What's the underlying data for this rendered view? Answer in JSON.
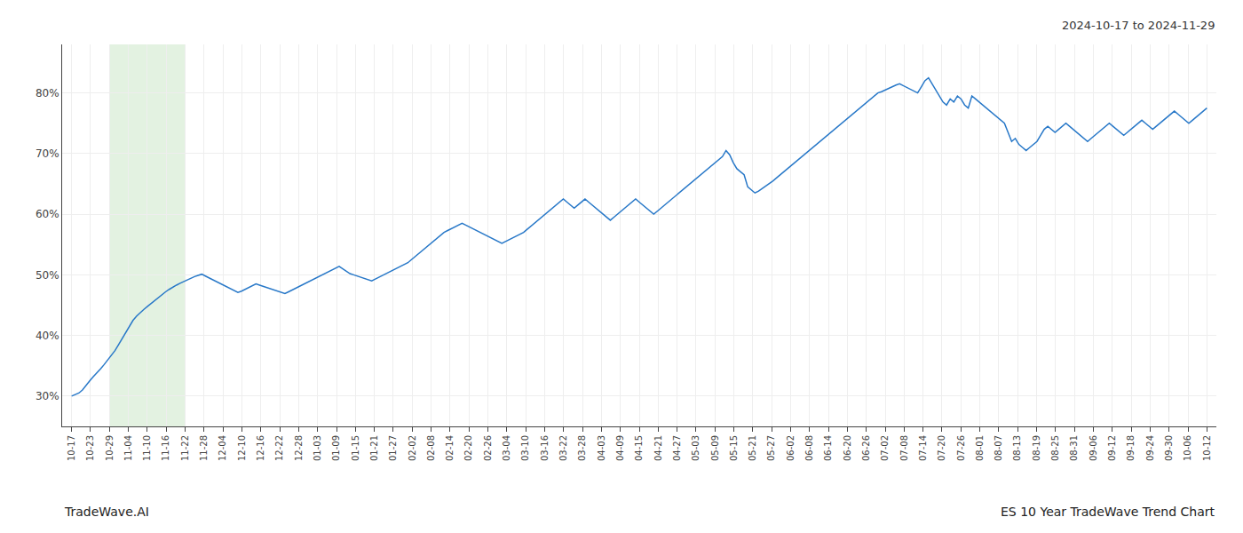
{
  "chart_data": {
    "type": "line",
    "annotations": [
      "2024-10-17 to 2024-11-29",
      "TradeWave.AI",
      "ES 10 Year TradeWave Trend Chart"
    ],
    "color": "#2878c8",
    "grid": true,
    "shaded": {
      "from": "10-29",
      "to": "11-22",
      "color": "#c8e6c4"
    },
    "xlim": [
      -0.5,
      60.5
    ],
    "xticks": [
      {
        "value": 0,
        "label": "10-17"
      },
      {
        "value": 1,
        "label": "10-23"
      },
      {
        "value": 2,
        "label": "10-29"
      },
      {
        "value": 3,
        "label": "11-04"
      },
      {
        "value": 4,
        "label": "11-10"
      },
      {
        "value": 5,
        "label": "11-16"
      },
      {
        "value": 6,
        "label": "11-22"
      },
      {
        "value": 7,
        "label": "11-28"
      },
      {
        "value": 8,
        "label": "12-04"
      },
      {
        "value": 9,
        "label": "12-10"
      },
      {
        "value": 10,
        "label": "12-16"
      },
      {
        "value": 11,
        "label": "12-22"
      },
      {
        "value": 12,
        "label": "12-28"
      },
      {
        "value": 13,
        "label": "01-03"
      },
      {
        "value": 14,
        "label": "01-09"
      },
      {
        "value": 15,
        "label": "01-15"
      },
      {
        "value": 16,
        "label": "01-21"
      },
      {
        "value": 17,
        "label": "01-27"
      },
      {
        "value": 18,
        "label": "02-02"
      },
      {
        "value": 19,
        "label": "02-08"
      },
      {
        "value": 20,
        "label": "02-14"
      },
      {
        "value": 21,
        "label": "02-20"
      },
      {
        "value": 22,
        "label": "02-26"
      },
      {
        "value": 23,
        "label": "03-04"
      },
      {
        "value": 24,
        "label": "03-10"
      },
      {
        "value": 25,
        "label": "03-16"
      },
      {
        "value": 26,
        "label": "03-22"
      },
      {
        "value": 27,
        "label": "03-28"
      },
      {
        "value": 28,
        "label": "04-03"
      },
      {
        "value": 29,
        "label": "04-09"
      },
      {
        "value": 30,
        "label": "04-15"
      },
      {
        "value": 31,
        "label": "04-21"
      },
      {
        "value": 32,
        "label": "04-27"
      },
      {
        "value": 33,
        "label": "05-03"
      },
      {
        "value": 34,
        "label": "05-09"
      },
      {
        "value": 35,
        "label": "05-15"
      },
      {
        "value": 36,
        "label": "05-21"
      },
      {
        "value": 37,
        "label": "05-27"
      },
      {
        "value": 38,
        "label": "06-02"
      },
      {
        "value": 39,
        "label": "06-08"
      },
      {
        "value": 40,
        "label": "06-14"
      },
      {
        "value": 41,
        "label": "06-20"
      },
      {
        "value": 42,
        "label": "06-26"
      },
      {
        "value": 43,
        "label": "07-02"
      },
      {
        "value": 44,
        "label": "07-08"
      },
      {
        "value": 45,
        "label": "07-14"
      },
      {
        "value": 46,
        "label": "07-20"
      },
      {
        "value": 47,
        "label": "07-26"
      },
      {
        "value": 48,
        "label": "08-01"
      },
      {
        "value": 49,
        "label": "08-07"
      },
      {
        "value": 50,
        "label": "08-13"
      },
      {
        "value": 51,
        "label": "08-19"
      },
      {
        "value": 52,
        "label": "08-25"
      },
      {
        "value": 53,
        "label": "08-31"
      },
      {
        "value": 54,
        "label": "09-06"
      },
      {
        "value": 55,
        "label": "09-12"
      },
      {
        "value": 56,
        "label": "09-18"
      },
      {
        "value": 57,
        "label": "09-24"
      },
      {
        "value": 58,
        "label": "09-30"
      },
      {
        "value": 59,
        "label": "10-06"
      },
      {
        "value": 60,
        "label": "10-12"
      }
    ],
    "ylim": [
      25,
      88
    ],
    "yticks": [
      {
        "value": 30,
        "label": "30%"
      },
      {
        "value": 40,
        "label": "40%"
      },
      {
        "value": 50,
        "label": "50%"
      },
      {
        "value": 60,
        "label": "60%"
      },
      {
        "value": 70,
        "label": "70%"
      },
      {
        "value": 80,
        "label": "80%"
      }
    ],
    "values": [
      30.0,
      30.2,
      30.5,
      31.0,
      31.8,
      32.5,
      33.2,
      33.8,
      34.5,
      35.2,
      36.0,
      36.8,
      37.5,
      38.5,
      39.5,
      40.5,
      41.5,
      42.5,
      43.2,
      43.8,
      44.3,
      44.8,
      45.3,
      45.8,
      46.3,
      46.7,
      47.2,
      47.6,
      48.0,
      48.3,
      48.6,
      48.9,
      49.2,
      49.5,
      49.7,
      49.9,
      50.1,
      49.8,
      49.5,
      49.2,
      48.9,
      48.6,
      48.3,
      48.0,
      47.7,
      47.4,
      47.1,
      47.3,
      47.6,
      47.9,
      48.2,
      48.5,
      48.3,
      48.1,
      47.9,
      47.7,
      47.5,
      47.3,
      47.1,
      46.9,
      47.2,
      47.5,
      47.8,
      48.1,
      48.4,
      48.7,
      49.0,
      49.3,
      49.6,
      49.9,
      50.2,
      50.5,
      50.8,
      51.1,
      51.4,
      51.0,
      50.6,
      50.2,
      50.0,
      49.8,
      49.6,
      49.4,
      49.2,
      49.0,
      49.3,
      49.6,
      49.9,
      50.2,
      50.5,
      50.8,
      51.1,
      51.4,
      51.7,
      52.0,
      52.5,
      53.0,
      53.5,
      54.0,
      54.5,
      55.0,
      55.5,
      56.0,
      56.5,
      57.0,
      57.3,
      57.6,
      57.9,
      58.2,
      58.5,
      58.2,
      57.9,
      57.6,
      57.3,
      57.0,
      56.7,
      56.4,
      56.1,
      55.8,
      55.5,
      55.2,
      55.5,
      55.8,
      56.1,
      56.4,
      56.7,
      57.0,
      57.5,
      58.0,
      58.5,
      59.0,
      59.5,
      60.0,
      60.5,
      61.0,
      61.5,
      62.0,
      62.5,
      62.0,
      61.5,
      61.0,
      61.5,
      62.0,
      62.5,
      62.0,
      61.5,
      61.0,
      60.5,
      60.0,
      59.5,
      59.0,
      59.5,
      60.0,
      60.5,
      61.0,
      61.5,
      62.0,
      62.5,
      62.0,
      61.5,
      61.0,
      60.5,
      60.0,
      60.5,
      61.0,
      61.5,
      62.0,
      62.5,
      63.0,
      63.5,
      64.0,
      64.5,
      65.0,
      65.5,
      66.0,
      66.5,
      67.0,
      67.5,
      68.0,
      68.5,
      69.0,
      69.5,
      70.5,
      69.8,
      68.5,
      67.5,
      67.0,
      66.5,
      64.5,
      64.0,
      63.5,
      63.8,
      64.2,
      64.6,
      65.0,
      65.5,
      66.0,
      66.5,
      67.0,
      67.5,
      68.0,
      68.5,
      69.0,
      69.5,
      70.0,
      70.5,
      71.0,
      71.5,
      72.0,
      72.5,
      73.0,
      73.5,
      74.0,
      74.5,
      75.0,
      75.5,
      76.0,
      76.5,
      77.0,
      77.5,
      78.0,
      78.5,
      79.0,
      79.5,
      80.0,
      80.2,
      80.5,
      80.8,
      81.0,
      81.3,
      81.5,
      81.2,
      80.9,
      80.6,
      80.3,
      80.0,
      81.0,
      82.0,
      82.5,
      81.5,
      80.5,
      79.5,
      78.5,
      78.0,
      79.0,
      78.5,
      79.5,
      79.0,
      78.0,
      77.5,
      79.5,
      79.0,
      78.5,
      78.0,
      77.5,
      77.0,
      76.5,
      76.0,
      75.5,
      75.0,
      73.5,
      72.0,
      72.5,
      71.5,
      71.0,
      70.5,
      71.0,
      71.5,
      72.0,
      73.0,
      74.0,
      74.5,
      74.0,
      73.5,
      74.0,
      74.5,
      75.0,
      74.5,
      74.0,
      73.5,
      73.0,
      72.5,
      72.0,
      72.5,
      73.0,
      73.5,
      74.0,
      74.5,
      75.0,
      74.5,
      74.0,
      73.5,
      73.0,
      73.5,
      74.0,
      74.5,
      75.0,
      75.5,
      75.0,
      74.5,
      74.0,
      74.5,
      75.0,
      75.5,
      76.0,
      76.5,
      77.0,
      76.5,
      76.0,
      75.5,
      75.0,
      75.5,
      76.0,
      76.5,
      77.0,
      77.5
    ]
  }
}
